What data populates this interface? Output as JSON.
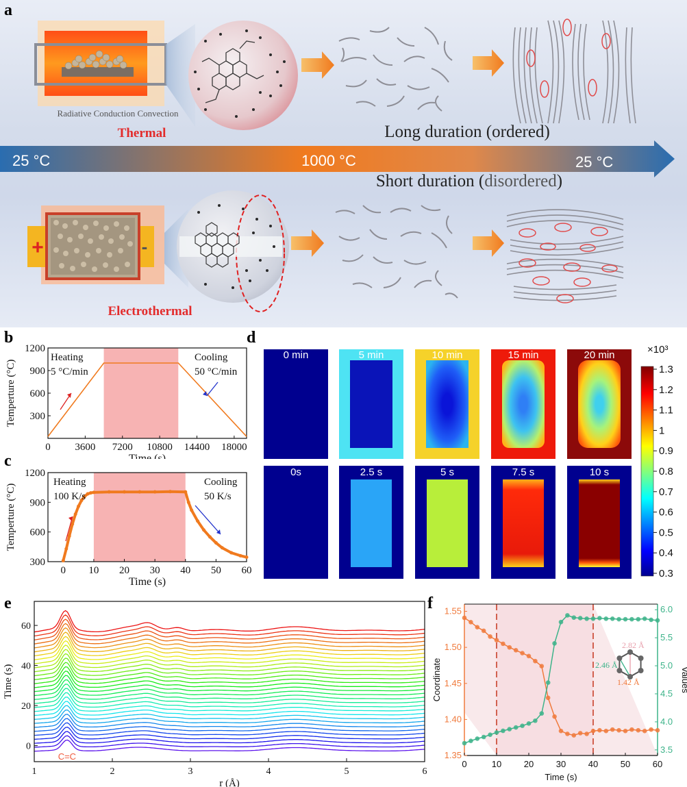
{
  "panel_labels": {
    "a": "a",
    "b": "b",
    "c": "c",
    "d": "d",
    "e": "e",
    "f": "f"
  },
  "panel_a": {
    "top_caption": "Radiative Conduction Convection",
    "thermal_label": "Thermal",
    "electrothermal_label": "Electrothermal",
    "long_duration": "Long duration (ordered)",
    "short_duration_prefix": "Short duration (",
    "short_duration_word": "disordered",
    "short_duration_suffix": ")",
    "temp_start": "25 °C",
    "temp_mid": "1000 °C",
    "temp_end": "25 °C",
    "plus": "+",
    "minus": "-",
    "colors": {
      "thermal": "#e32b2b",
      "arrow_blue": "#2a6db0",
      "arrow_orange": "#f07a1e"
    }
  },
  "chart_b": {
    "type": "line",
    "xlabel": "Time (s)",
    "ylabel": "Temperture (°C)",
    "xticks": [
      "0",
      "3600",
      "7200",
      "10800",
      "14400",
      "18000"
    ],
    "yticks": [
      "300",
      "600",
      "900",
      "1200"
    ],
    "xlim": [
      0,
      19200
    ],
    "ylim": [
      0,
      1200
    ],
    "shade": [
      5400,
      12600
    ],
    "x": [
      0,
      5400,
      12600,
      19200
    ],
    "y": [
      25,
      1000,
      1000,
      25
    ],
    "annot_heating": "Heating",
    "annot_heating_rate": "5 °C/min",
    "annot_cooling": "Cooling",
    "annot_cooling_rate": "50 °C/min"
  },
  "chart_c": {
    "type": "line",
    "xlabel": "Time (s)",
    "ylabel": "Temperture (°C)",
    "xticks": [
      "0",
      "10",
      "20",
      "30",
      "40",
      "50",
      "60"
    ],
    "yticks": [
      "300",
      "600",
      "900",
      "1200"
    ],
    "xlim": [
      -5,
      60
    ],
    "ylim": [
      300,
      1200
    ],
    "shade": [
      10,
      40
    ],
    "x": [
      0,
      1,
      2,
      3,
      4,
      5,
      6,
      7,
      8,
      9,
      10,
      15,
      20,
      25,
      30,
      35,
      40,
      41,
      42,
      44,
      46,
      48,
      50,
      52,
      55,
      58,
      60
    ],
    "y": [
      310,
      430,
      560,
      680,
      780,
      860,
      920,
      960,
      985,
      995,
      1000,
      1005,
      1005,
      1005,
      1005,
      1008,
      1005,
      900,
      820,
      710,
      620,
      550,
      490,
      440,
      390,
      360,
      345
    ],
    "annot_heating": "Heating",
    "annot_heating_rate": "100 K/s",
    "annot_cooling": "Cooling",
    "annot_cooling_rate": "50 K/s"
  },
  "panel_d": {
    "row1_labels": [
      "0 min",
      "5 min",
      "10 min",
      "15 min",
      "20 min"
    ],
    "row2_labels": [
      "0s",
      "2.5 s",
      "5 s",
      "7.5 s",
      "10 s"
    ],
    "colorbar_exponent": "×10³",
    "colorbar_ticks": [
      "1.3",
      "1.2",
      "1.1",
      "1",
      "0.9",
      "0.8",
      "0.7",
      "0.6",
      "0.5",
      "0.4",
      "0.3"
    ]
  },
  "chart_e": {
    "type": "line",
    "xlabel": "r (Å)",
    "ylabel": "Time (s)",
    "xticks": [
      "1",
      "2",
      "3",
      "4",
      "5",
      "6"
    ],
    "yticks": [
      "0",
      "20",
      "40",
      "60"
    ],
    "xlim": [
      1,
      6
    ],
    "ylim": [
      -8,
      72
    ],
    "series_count": 31,
    "time_step": 2,
    "peak_label": "C=C"
  },
  "chart_f": {
    "type": "scatter",
    "xlabel": "Time (s)",
    "ylabel_left": "Coordinate",
    "ylabel_right": "Values",
    "xticks": [
      "0",
      "10",
      "20",
      "30",
      "40",
      "50",
      "60"
    ],
    "yticks_left": [
      "1.35",
      "1.40",
      "1.45",
      "1.50",
      "1.55"
    ],
    "yticks_right": [
      "3.5",
      "4.0",
      "4.5",
      "5.0",
      "5.5",
      "6.0"
    ],
    "xlim": [
      0,
      60
    ],
    "ylim_left": [
      1.35,
      1.56
    ],
    "ylim_right": [
      3.4,
      6.1
    ],
    "dashed_x": [
      10,
      40
    ],
    "series": [
      {
        "name": "Coordinate",
        "axis": "left",
        "color": "#f07a3c",
        "x": [
          0,
          2,
          4,
          6,
          8,
          10,
          12,
          14,
          16,
          18,
          20,
          22,
          24,
          26,
          28,
          30,
          32,
          34,
          36,
          38,
          40,
          42,
          44,
          46,
          48,
          50,
          52,
          54,
          56,
          58,
          60
        ],
        "y": [
          1.541,
          1.535,
          1.528,
          1.523,
          1.515,
          1.51,
          1.505,
          1.5,
          1.496,
          1.492,
          1.488,
          1.481,
          1.474,
          1.43,
          1.404,
          1.384,
          1.38,
          1.378,
          1.381,
          1.38,
          1.384,
          1.385,
          1.384,
          1.386,
          1.385,
          1.384,
          1.386,
          1.385,
          1.384,
          1.386,
          1.385
        ]
      },
      {
        "name": "Values",
        "axis": "right",
        "color": "#3cb389",
        "x": [
          0,
          2,
          4,
          6,
          8,
          10,
          12,
          14,
          16,
          18,
          20,
          22,
          24,
          26,
          28,
          30,
          32,
          34,
          36,
          38,
          40,
          42,
          44,
          46,
          48,
          50,
          52,
          54,
          56,
          58,
          60
        ],
        "y": [
          3.62,
          3.66,
          3.7,
          3.73,
          3.77,
          3.81,
          3.84,
          3.87,
          3.9,
          3.93,
          3.97,
          4.02,
          4.15,
          4.7,
          5.4,
          5.78,
          5.9,
          5.86,
          5.85,
          5.84,
          5.84,
          5.85,
          5.84,
          5.84,
          5.83,
          5.83,
          5.83,
          5.83,
          5.84,
          5.82,
          5.81
        ]
      }
    ],
    "inset_labels": {
      "a": "2.82 Å",
      "b": "2.46 Å",
      "c": "1.42 Å"
    }
  }
}
